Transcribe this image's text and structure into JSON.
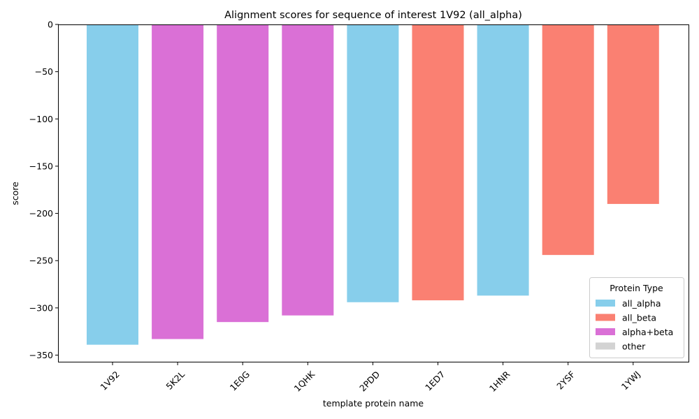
{
  "chart_data": {
    "type": "bar",
    "title": "Alignment scores for sequence of interest 1V92 (all_alpha)",
    "xlabel": "template protein name",
    "ylabel": "score",
    "ylim": [
      -357,
      0
    ],
    "yticks": [
      0,
      -50,
      -100,
      -150,
      -200,
      -250,
      -300,
      -350
    ],
    "ytick_labels": [
      "0",
      "−50",
      "−100",
      "−150",
      "−200",
      "−250",
      "−300",
      "−350"
    ],
    "grid": false,
    "categories": [
      "1V92",
      "5K2L",
      "1E0G",
      "1QHK",
      "2PDD",
      "1ED7",
      "1HNR",
      "2YSF",
      "1YWJ"
    ],
    "values": [
      -339,
      -333,
      -315,
      -308,
      -294,
      -292,
      -287,
      -244,
      -190
    ],
    "bar_types": [
      "all_alpha",
      "alpha+beta",
      "alpha+beta",
      "alpha+beta",
      "all_alpha",
      "all_beta",
      "all_alpha",
      "all_beta",
      "all_beta"
    ],
    "colors": {
      "all_alpha": "#87ceeb",
      "all_beta": "#fa8072",
      "alpha+beta": "#da70d6",
      "other": "#d3d3d3"
    },
    "legend": {
      "title": "Protein Type",
      "position": "lower-right",
      "entries": [
        "all_alpha",
        "all_beta",
        "alpha+beta",
        "other"
      ]
    }
  }
}
